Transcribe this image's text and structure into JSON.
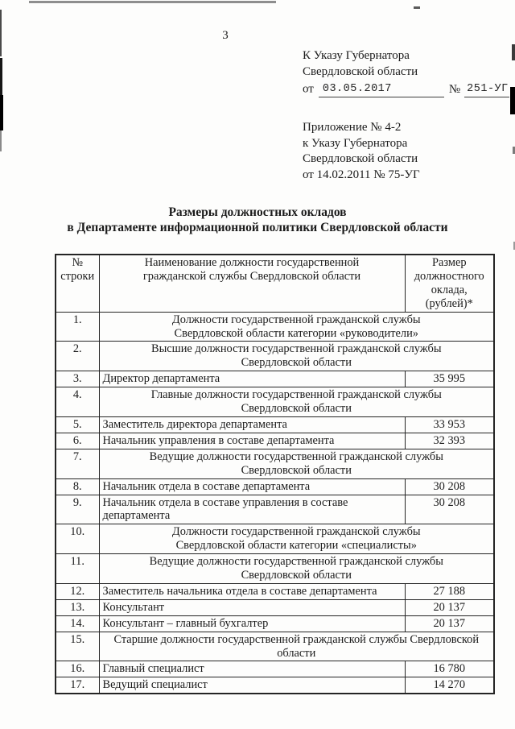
{
  "page_number": "3",
  "ref_block_top": {
    "line1": "К Указу Губернатора",
    "line2": "Свердловской области",
    "from_label": "от",
    "date": "03.05.2017",
    "number_label": "№",
    "number": "251-УГ"
  },
  "ref_block_appendix": {
    "line1": "Приложение № 4-2",
    "line2": "к Указу Губернатора",
    "line3": "Свердловской области",
    "line4": "от 14.02.2011 № 75-УГ"
  },
  "title": {
    "line1": "Размеры должностных окладов",
    "line2": "в Департаменте информационной политики Свердловской области"
  },
  "table": {
    "headers": {
      "col_row_number": "№\nстроки",
      "col_position": "Наименование должности государственной\nгражданской службы Свердловской области",
      "col_salary": "Размер\nдолжностного\nоклада,\n(рублей)*"
    },
    "rows": [
      {
        "num": "1.",
        "text": "Должности государственной гражданской службы\nСвердловской области категории «руководители»",
        "salary": "",
        "merged": true
      },
      {
        "num": "2.",
        "text": "Высшие должности государственной гражданской службы\nСвердловской области",
        "salary": "",
        "merged": true
      },
      {
        "num": "3.",
        "text": "Директор департамента",
        "salary": "35 995",
        "merged": false
      },
      {
        "num": "4.",
        "text": "Главные должности государственной гражданской службы\nСвердловской области",
        "salary": "",
        "merged": true
      },
      {
        "num": "5.",
        "text": "Заместитель директора департамента",
        "salary": "33 953",
        "merged": false
      },
      {
        "num": "6.",
        "text": "Начальник управления в составе департамента",
        "salary": "32 393",
        "merged": false
      },
      {
        "num": "7.",
        "text": "Ведущие должности государственной гражданской службы\nСвердловской области",
        "salary": "",
        "merged": true
      },
      {
        "num": "8.",
        "text": "Начальник отдела в составе департамента",
        "salary": "30 208",
        "merged": false
      },
      {
        "num": "9.",
        "text": "Начальник отдела в составе управления в составе\nдепартамента",
        "salary": "30 208",
        "merged": false
      },
      {
        "num": "10.",
        "text": "Должности государственной гражданской службы\nСвердловской области категории «специалисты»",
        "salary": "",
        "merged": true
      },
      {
        "num": "11.",
        "text": "Ведущие должности государственной гражданской службы\nСвердловской области",
        "salary": "",
        "merged": true
      },
      {
        "num": "12.",
        "text": "Заместитель начальника отдела в составе департамента",
        "salary": "27 188",
        "merged": false
      },
      {
        "num": "13.",
        "text": "Консультант",
        "salary": "20 137",
        "merged": false
      },
      {
        "num": "14.",
        "text": "Консультант – главный бухгалтер",
        "salary": "20 137",
        "merged": false
      },
      {
        "num": "15.",
        "text": "Старшие должности государственной гражданской службы Свердловской\nобласти",
        "salary": "",
        "merged": true
      },
      {
        "num": "16.",
        "text": "Главный специалист",
        "salary": "16 780",
        "merged": false
      },
      {
        "num": "17.",
        "text": "Ведущий специалист",
        "salary": "14 270",
        "merged": false
      }
    ]
  }
}
